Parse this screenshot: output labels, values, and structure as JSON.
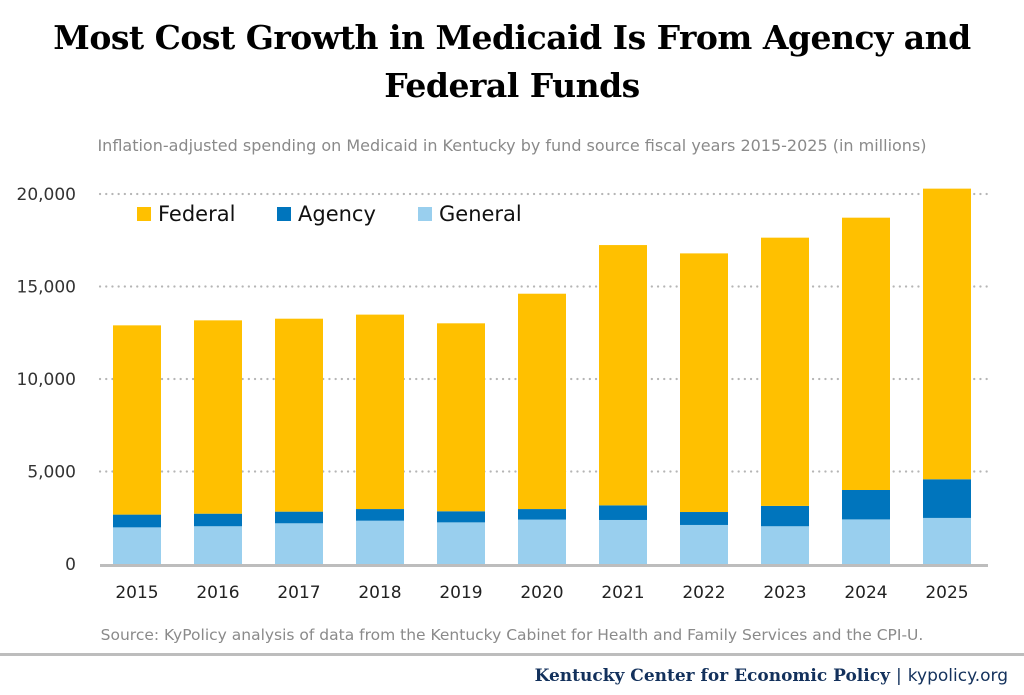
{
  "chart_data": {
    "type": "bar",
    "stacked": true,
    "title": "Most Cost Growth in Medicaid Is From Agency and Federal Funds",
    "subtitle": "Inflation-adjusted spending on Medicaid in Kentucky by fund source fiscal years 2015-2025 (in millions)",
    "xlabel": "",
    "ylabel": "",
    "ylim": [
      0,
      20000
    ],
    "yticks": [
      0,
      5000,
      10000,
      15000,
      20000
    ],
    "ytick_labels": [
      "0",
      "5,000",
      "10,000",
      "15,000",
      "20,000"
    ],
    "grid": "horizontal dotted",
    "legend_position": "top-left",
    "categories": [
      "2015",
      "2016",
      "2017",
      "2018",
      "2019",
      "2020",
      "2021",
      "2022",
      "2023",
      "2024",
      "2025"
    ],
    "series": [
      {
        "name": "General",
        "color": "#99cfee",
        "values": [
          1980,
          2040,
          2200,
          2340,
          2250,
          2400,
          2380,
          2110,
          2040,
          2410,
          2490
        ]
      },
      {
        "name": "Agency",
        "color": "#0075bd",
        "values": [
          690,
          680,
          630,
          630,
          600,
          570,
          790,
          700,
          1100,
          1590,
          2090
        ]
      },
      {
        "name": "Federal",
        "color": "#ffc000",
        "values": [
          10230,
          10450,
          10430,
          10510,
          10160,
          11640,
          14070,
          13980,
          14500,
          14720,
          15710
        ]
      }
    ],
    "legend_order": [
      "Federal",
      "Agency",
      "General"
    ],
    "source": "Source: KyPolicy analysis of data from the Kentucky Cabinet for Health and Family Services and the CPI-U."
  },
  "footer": {
    "org": "Kentucky Center for Economic Policy",
    "separator": "|",
    "site": "kypolicy.org"
  }
}
